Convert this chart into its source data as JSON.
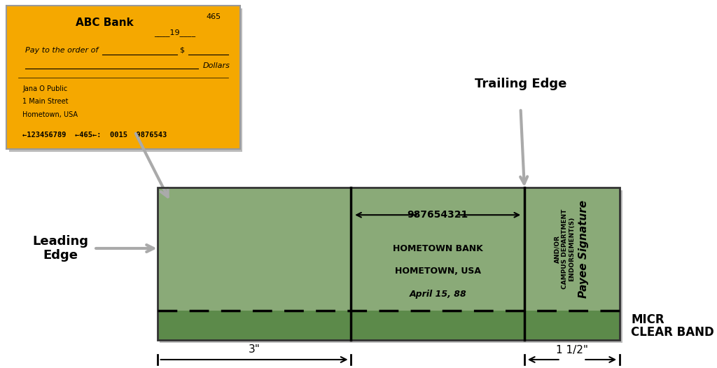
{
  "bg_color": "#ffffff",
  "check_color": "#F5A800",
  "green_light": "#8aaa78",
  "green_dark": "#5c8a4a",
  "bank_name": "ABC Bank",
  "check_number": "465",
  "pay_to": "Pay to the order of",
  "dollar_sign": "$",
  "dollars_word": "Dollars",
  "address_lines": [
    "Jana O Public",
    "1 Main Street",
    "Hometown, USA"
  ],
  "micr_line": "←123456789  ←465←:  0015  9876543",
  "center_text_line1": "987654321",
  "center_text_line2": "HOMETOWN BANK",
  "center_text_line3": "HOMETOWN, USA",
  "center_text_line4": "April 15, 88",
  "right_col_text1": "AND/OR",
  "right_col_text2": "CAMPUS DEPARTMENT",
  "right_col_text3": "ENDORSEMENT(S)",
  "payee_sig": "Payee Signature",
  "trailing_edge_label": "Trailing Edge",
  "micr_label1": "MICR",
  "micr_label2": "CLEAR BAND",
  "dim_label1": "3\"",
  "dim_label2": "1 1/2\""
}
